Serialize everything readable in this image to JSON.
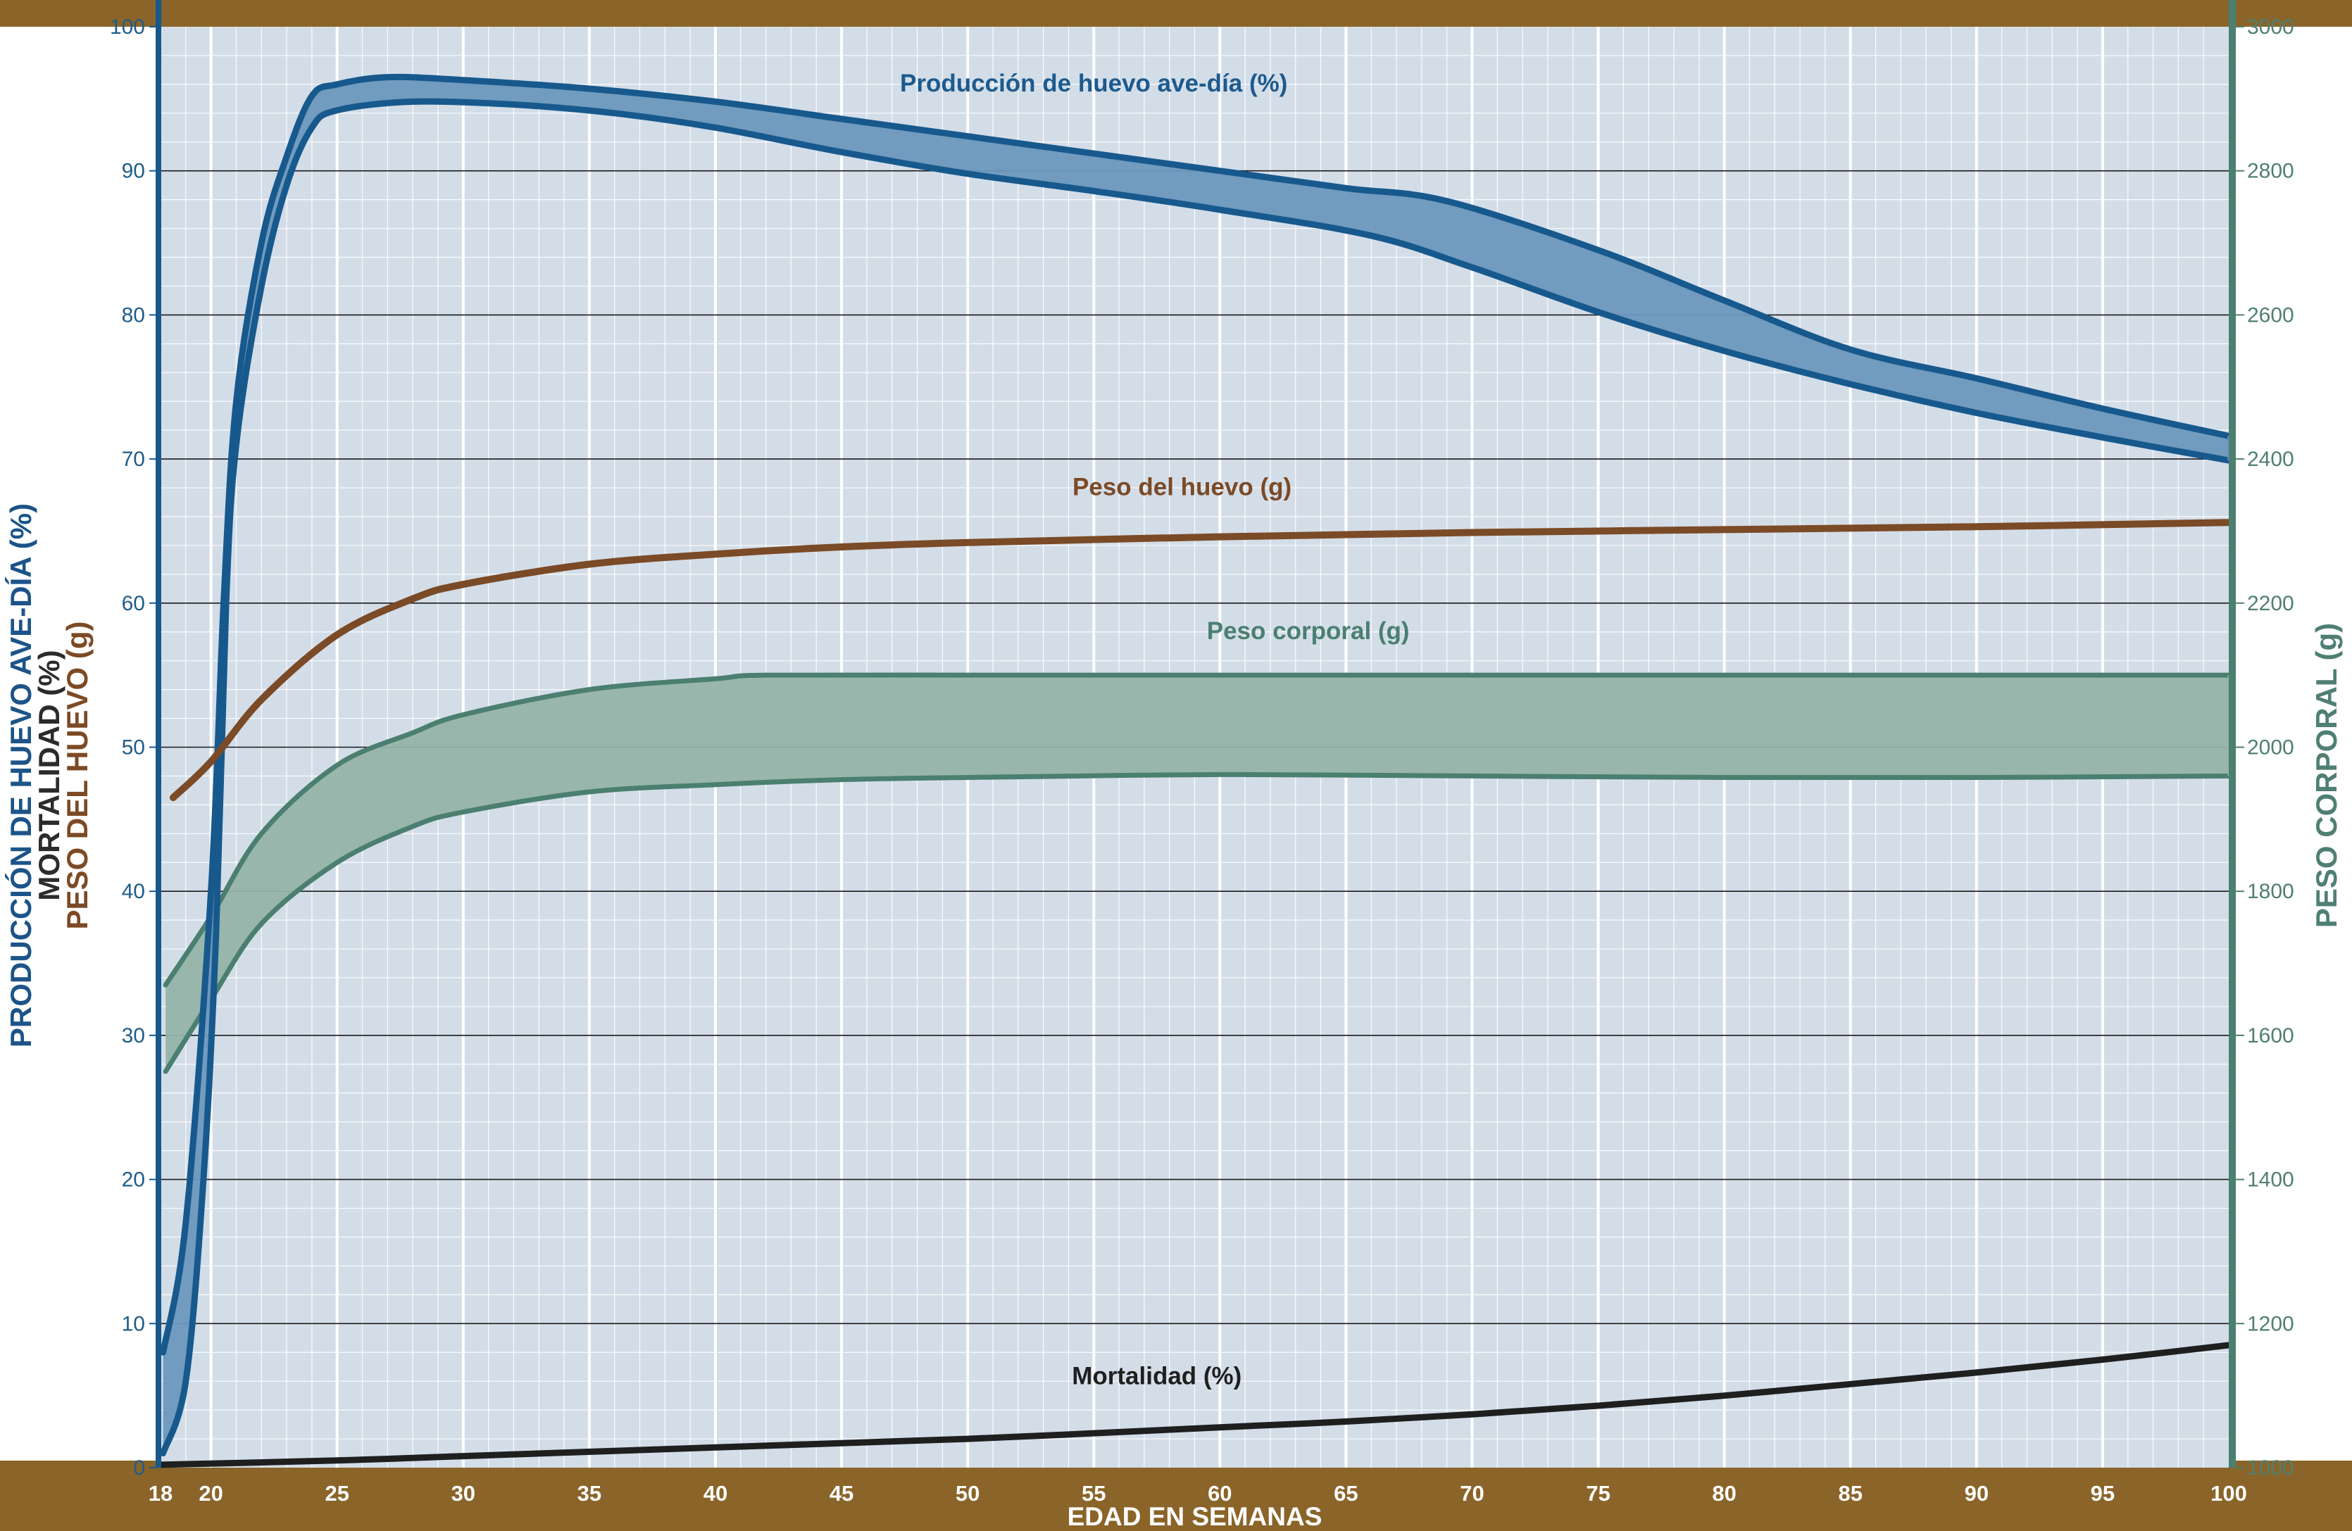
{
  "chart_data": {
    "type": "line",
    "xlabel": "EDAD EN SEMANAS",
    "ylabel_left": [
      "PRODUCCIÓN DE HUEVO AVE-DÍA (%)",
      "MORTALIDAD (%)",
      "PESO DEL HUEVO (g)"
    ],
    "ylabel_right": "PESO CORPORAL (g)",
    "xlim": [
      18,
      100
    ],
    "ylim_left": [
      0,
      100
    ],
    "ylim_right": [
      1000,
      3000
    ],
    "x_ticks": [
      18,
      20,
      25,
      30,
      35,
      40,
      45,
      50,
      55,
      60,
      65,
      70,
      75,
      80,
      85,
      90,
      95,
      100
    ],
    "y_left_ticks": [
      0,
      10,
      20,
      30,
      40,
      50,
      60,
      70,
      80,
      90,
      100
    ],
    "y_right_ticks": [
      1000,
      1200,
      1400,
      1600,
      1800,
      2000,
      2200,
      2400,
      2600,
      2800,
      3000
    ],
    "grid": true,
    "colors": {
      "production": "#17598d",
      "production_fill": "#6b97bd",
      "egg_weight": "#7b4a26",
      "body_weight": "#4b7f70",
      "body_fill": "#95b3a8",
      "mortality": "#1f1f1f",
      "frame": "#8a6428",
      "plot_bg": "#d3dde8"
    },
    "series": [
      {
        "name": "Producción de huevo ave-día (%)",
        "axis": "left",
        "kind": "band",
        "upper": [
          [
            18.1,
            8
          ],
          [
            19,
            17
          ],
          [
            20,
            40
          ],
          [
            20.5,
            60
          ],
          [
            21,
            74
          ],
          [
            22,
            85
          ],
          [
            23,
            91
          ],
          [
            24,
            95.2
          ],
          [
            25,
            96
          ],
          [
            27,
            96.5
          ],
          [
            30,
            96.3
          ],
          [
            35,
            95.7
          ],
          [
            40,
            94.8
          ],
          [
            45,
            93.6
          ],
          [
            50,
            92.4
          ],
          [
            55,
            91.2
          ],
          [
            60,
            90
          ],
          [
            65,
            88.8
          ],
          [
            69,
            87.9
          ],
          [
            75,
            84.5
          ],
          [
            80,
            81
          ],
          [
            85,
            77.6
          ],
          [
            90,
            75.6
          ],
          [
            95,
            73.5
          ],
          [
            100,
            71.6
          ]
        ],
        "lower": [
          [
            18.1,
            1
          ],
          [
            19,
            6
          ],
          [
            19.7,
            20
          ],
          [
            20.2,
            37
          ],
          [
            20.6,
            60
          ],
          [
            21,
            71
          ],
          [
            22,
            82
          ],
          [
            23,
            89
          ],
          [
            24,
            93
          ],
          [
            25,
            94.2
          ],
          [
            28,
            94.8
          ],
          [
            32,
            94.6
          ],
          [
            36,
            94
          ],
          [
            40,
            93
          ],
          [
            45,
            91.3
          ],
          [
            50,
            89.8
          ],
          [
            55,
            88.6
          ],
          [
            60,
            87.3
          ],
          [
            66,
            85.5
          ],
          [
            70,
            83.3
          ],
          [
            75,
            80.2
          ],
          [
            80,
            77.5
          ],
          [
            85,
            75.2
          ],
          [
            90,
            73.2
          ],
          [
            95,
            71.5
          ],
          [
            100,
            69.9
          ]
        ]
      },
      {
        "name": "Peso del huevo (g)",
        "axis": "left",
        "kind": "line",
        "points": [
          [
            18.5,
            46.5
          ],
          [
            20,
            49
          ],
          [
            22,
            53.3
          ],
          [
            25,
            57.8
          ],
          [
            28,
            60.3
          ],
          [
            30,
            61.3
          ],
          [
            35,
            62.7
          ],
          [
            40,
            63.4
          ],
          [
            45,
            63.9
          ],
          [
            50,
            64.2
          ],
          [
            60,
            64.6
          ],
          [
            70,
            64.9
          ],
          [
            80,
            65.1
          ],
          [
            90,
            65.3
          ],
          [
            100,
            65.6
          ]
        ]
      },
      {
        "name": "Peso corporal (g)",
        "axis": "right",
        "kind": "band",
        "upper": [
          [
            18.2,
            1670
          ],
          [
            20,
            1765
          ],
          [
            22,
            1880
          ],
          [
            25,
            1975
          ],
          [
            28,
            2020
          ],
          [
            30,
            2045
          ],
          [
            35,
            2080
          ],
          [
            40,
            2095
          ],
          [
            42,
            2100
          ],
          [
            50,
            2100
          ],
          [
            60,
            2100
          ],
          [
            70,
            2100
          ],
          [
            80,
            2100
          ],
          [
            90,
            2100
          ],
          [
            100,
            2100
          ]
        ],
        "lower": [
          [
            18.2,
            1550
          ],
          [
            20,
            1650
          ],
          [
            22,
            1755
          ],
          [
            25,
            1840
          ],
          [
            28,
            1890
          ],
          [
            30,
            1910
          ],
          [
            35,
            1938
          ],
          [
            40,
            1948
          ],
          [
            45,
            1955
          ],
          [
            50,
            1958
          ],
          [
            60,
            1962
          ],
          [
            70,
            1960
          ],
          [
            80,
            1958
          ],
          [
            90,
            1958
          ],
          [
            100,
            1960
          ]
        ]
      },
      {
        "name": "Mortalidad (%)",
        "axis": "left",
        "kind": "line",
        "points": [
          [
            18,
            0.2
          ],
          [
            25,
            0.5
          ],
          [
            30,
            0.8
          ],
          [
            40,
            1.4
          ],
          [
            50,
            2
          ],
          [
            60,
            2.8
          ],
          [
            65,
            3.2
          ],
          [
            70,
            3.7
          ],
          [
            75,
            4.3
          ],
          [
            80,
            5
          ],
          [
            85,
            5.8
          ],
          [
            90,
            6.6
          ],
          [
            95,
            7.5
          ],
          [
            100,
            8.5
          ]
        ]
      }
    ],
    "annotations": [
      {
        "text": "Producción de huevo ave-día (%)",
        "x": 55,
        "y": 95.5,
        "axis": "left",
        "color": "#1d5a8e"
      },
      {
        "text": "Peso del huevo (g)",
        "x": 58.5,
        "y": 67.5,
        "axis": "left",
        "color": "#7b4a26"
      },
      {
        "text": "Peso corporal (g)",
        "x": 63.5,
        "y": 57.5,
        "axis": "left",
        "color": "#4b7f70"
      },
      {
        "text": "Mortalidad (%)",
        "x": 57.5,
        "y": 5.8,
        "axis": "left",
        "color": "#1f1f1f"
      }
    ]
  }
}
